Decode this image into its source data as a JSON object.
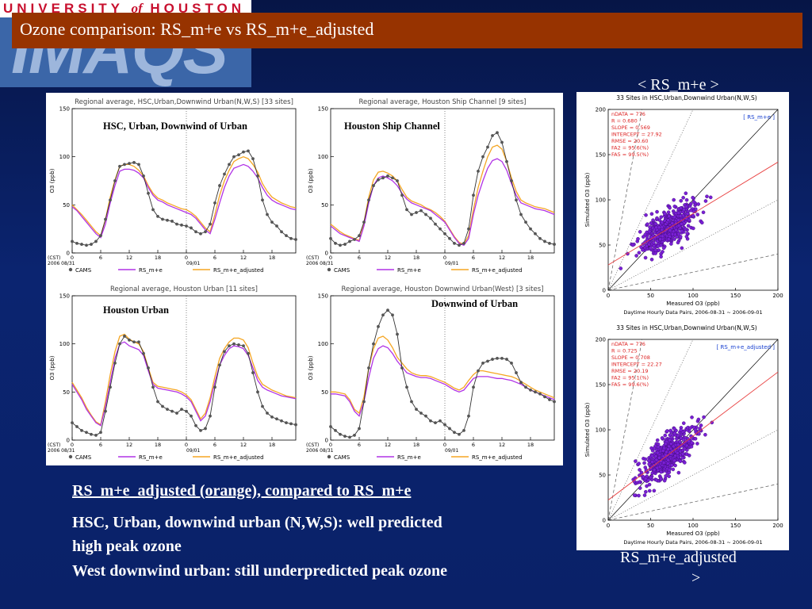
{
  "slide": {
    "title": "Ozone comparison: RS_m+e vs RS_m+e_adjusted",
    "logo_text": "UNIVERSITY of HOUSTON",
    "logo_mark": "IMAQS",
    "label_top_right": "< RS_m+e >",
    "label_bottom_right_line1": "RS_m+e_adjusted",
    "label_bottom_right_line2": ">",
    "notes": [
      "RS_m+e_adjusted (orange), compared to RS_m+e",
      "HSC, Urban, downwind urban (N,W,S): well predicted",
      "high peak ozone",
      "West downwind urban: still underpredicted peak ozone"
    ]
  },
  "colors": {
    "title_bar": "#973300",
    "background": "#0b2470",
    "cams": "#333333",
    "rsme": "#b133e6",
    "rsme_adjusted": "#f5a623",
    "scatter_points": "#7a1fd6",
    "fit_line": "#e84040"
  },
  "chart_data": [
    {
      "type": "line",
      "title": "Regional average, HSC,Urban,Downwind Urban(N,W,S) [33 sites]",
      "annotation": "HSC, Urban, Downwind of Urban",
      "ylabel": "O3 (ppb)",
      "ylim": [
        0,
        150
      ],
      "yticks": [
        "0",
        "50",
        "100",
        "150"
      ],
      "xtick_labels": [
        "0",
        "6",
        "12",
        "18",
        "0",
        "6",
        "12",
        "18"
      ],
      "date_labels": [
        "(CST)",
        "2006 08/31",
        "09/01"
      ],
      "x": [
        0,
        1,
        2,
        3,
        4,
        5,
        6,
        7,
        8,
        9,
        10,
        11,
        12,
        13,
        14,
        15,
        16,
        17,
        18,
        19,
        20,
        21,
        22,
        23,
        24,
        25,
        26,
        27,
        28,
        29,
        30,
        31,
        32,
        33,
        34,
        35,
        36,
        37,
        38,
        39,
        40,
        41,
        42,
        43,
        44,
        45,
        46,
        47
      ],
      "series": [
        {
          "name": "CAMS",
          "values": [
            12,
            10,
            9,
            8,
            9,
            12,
            18,
            35,
            55,
            75,
            90,
            92,
            93,
            94,
            92,
            80,
            62,
            45,
            38,
            35,
            34,
            33,
            30,
            29,
            28,
            26,
            22,
            20,
            22,
            30,
            52,
            70,
            82,
            92,
            100,
            102,
            105,
            106,
            98,
            80,
            55,
            40,
            32,
            28,
            22,
            18,
            15,
            14
          ]
        },
        {
          "name": "RS_m+e",
          "values": [
            48,
            44,
            38,
            32,
            26,
            20,
            16,
            30,
            52,
            70,
            85,
            87,
            87,
            86,
            83,
            78,
            68,
            60,
            55,
            53,
            50,
            48,
            46,
            44,
            42,
            40,
            36,
            30,
            24,
            20,
            35,
            52,
            68,
            80,
            88,
            90,
            92,
            90,
            85,
            78,
            68,
            60,
            55,
            52,
            50,
            48,
            46,
            45
          ]
        },
        {
          "name": "RS_m+e_adjusted",
          "values": [
            50,
            45,
            40,
            34,
            28,
            22,
            18,
            35,
            58,
            76,
            90,
            92,
            92,
            90,
            86,
            80,
            70,
            62,
            57,
            55,
            52,
            50,
            48,
            46,
            45,
            42,
            38,
            32,
            26,
            22,
            40,
            60,
            75,
            86,
            95,
            98,
            100,
            98,
            92,
            84,
            72,
            64,
            58,
            55,
            52,
            50,
            48,
            47
          ]
        }
      ]
    },
    {
      "type": "line",
      "title": "Regional average, Houston Ship Channel [9 sites]",
      "annotation": "Houston Ship Channel",
      "ylabel": "O3 (ppb)",
      "ylim": [
        0,
        150
      ],
      "yticks": [
        "0",
        "50",
        "100",
        "150"
      ],
      "xtick_labels": [
        "0",
        "6",
        "12",
        "18",
        "0",
        "6",
        "12",
        "18"
      ],
      "date_labels": [
        "(CST)",
        "2006 08/31",
        "09/01"
      ],
      "x": [
        0,
        1,
        2,
        3,
        4,
        5,
        6,
        7,
        8,
        9,
        10,
        11,
        12,
        13,
        14,
        15,
        16,
        17,
        18,
        19,
        20,
        21,
        22,
        23,
        24,
        25,
        26,
        27,
        28,
        29,
        30,
        31,
        32,
        33,
        34,
        35,
        36,
        37,
        38,
        39,
        40,
        41,
        42,
        43,
        44,
        45,
        46,
        47
      ],
      "series": [
        {
          "name": "CAMS",
          "values": [
            15,
            10,
            8,
            9,
            12,
            14,
            18,
            32,
            55,
            70,
            76,
            78,
            80,
            78,
            75,
            60,
            45,
            40,
            42,
            44,
            40,
            36,
            30,
            25,
            20,
            15,
            10,
            8,
            10,
            25,
            60,
            85,
            100,
            110,
            122,
            125,
            115,
            95,
            75,
            55,
            40,
            32,
            25,
            20,
            15,
            12,
            10,
            9
          ]
        },
        {
          "name": "RS_m+e",
          "values": [
            28,
            24,
            20,
            18,
            16,
            14,
            12,
            28,
            52,
            70,
            78,
            80,
            78,
            75,
            70,
            62,
            56,
            52,
            50,
            48,
            46,
            44,
            40,
            36,
            32,
            24,
            16,
            10,
            8,
            15,
            40,
            60,
            75,
            88,
            96,
            98,
            95,
            86,
            72,
            60,
            52,
            50,
            48,
            46,
            45,
            44,
            42,
            40
          ]
        },
        {
          "name": "RS_m+e_adjusted",
          "values": [
            30,
            26,
            22,
            19,
            17,
            15,
            13,
            32,
            58,
            76,
            84,
            85,
            83,
            80,
            75,
            66,
            58,
            54,
            52,
            50,
            47,
            45,
            42,
            38,
            33,
            25,
            17,
            11,
            9,
            18,
            45,
            68,
            85,
            100,
            110,
            112,
            108,
            95,
            78,
            64,
            55,
            52,
            50,
            48,
            47,
            46,
            44,
            42
          ]
        }
      ]
    },
    {
      "type": "line",
      "title": "Regional average, Houston Urban [11 sites]",
      "annotation": "Houston Urban",
      "ylabel": "O3 (ppb)",
      "ylim": [
        0,
        150
      ],
      "yticks": [
        "0",
        "50",
        "100",
        "150"
      ],
      "xtick_labels": [
        "0",
        "6",
        "12",
        "18",
        "0",
        "6",
        "12",
        "18"
      ],
      "date_labels": [
        "(CST)",
        "2006 08/31",
        "09/01"
      ],
      "x": [
        0,
        1,
        2,
        3,
        4,
        5,
        6,
        7,
        8,
        9,
        10,
        11,
        12,
        13,
        14,
        15,
        16,
        17,
        18,
        19,
        20,
        21,
        22,
        23,
        24,
        25,
        26,
        27,
        28,
        29,
        30,
        31,
        32,
        33,
        34,
        35,
        36,
        37,
        38,
        39,
        40,
        41,
        42,
        43,
        44,
        45,
        46,
        47
      ],
      "series": [
        {
          "name": "CAMS",
          "values": [
            18,
            14,
            10,
            8,
            6,
            5,
            8,
            30,
            55,
            80,
            100,
            108,
            104,
            102,
            102,
            90,
            75,
            55,
            40,
            35,
            32,
            30,
            28,
            32,
            30,
            25,
            15,
            10,
            12,
            25,
            55,
            78,
            92,
            98,
            100,
            99,
            98,
            90,
            70,
            50,
            35,
            28,
            24,
            22,
            20,
            18,
            17,
            16
          ]
        },
        {
          "name": "RS_m+e",
          "values": [
            58,
            50,
            42,
            32,
            25,
            18,
            15,
            35,
            60,
            85,
            100,
            102,
            98,
            96,
            94,
            88,
            72,
            58,
            54,
            53,
            52,
            51,
            50,
            48,
            45,
            40,
            30,
            20,
            25,
            40,
            60,
            78,
            88,
            95,
            98,
            97,
            95,
            88,
            75,
            62,
            55,
            52,
            50,
            48,
            46,
            45,
            44,
            43
          ]
        },
        {
          "name": "RS_m+e_adjusted",
          "values": [
            60,
            52,
            44,
            34,
            26,
            19,
            16,
            40,
            68,
            92,
            108,
            110,
            105,
            102,
            100,
            92,
            75,
            60,
            56,
            55,
            54,
            53,
            52,
            50,
            47,
            42,
            32,
            22,
            28,
            44,
            66,
            85,
            95,
            102,
            106,
            106,
            104,
            96,
            80,
            66,
            58,
            55,
            52,
            50,
            48,
            46,
            45,
            44
          ]
        }
      ]
    },
    {
      "type": "line",
      "title": "Regional average, Houston Downwind Urban(West) [3 sites]",
      "annotation": "Downwind of Urban",
      "ylabel": "O3 (ppb)",
      "ylim": [
        0,
        150
      ],
      "yticks": [
        "0",
        "50",
        "100",
        "150"
      ],
      "xtick_labels": [
        "0",
        "6",
        "12",
        "18",
        "0",
        "6",
        "12",
        "18"
      ],
      "date_labels": [
        "(CST)",
        "2006 08/31",
        "09/01"
      ],
      "x": [
        0,
        1,
        2,
        3,
        4,
        5,
        6,
        7,
        8,
        9,
        10,
        11,
        12,
        13,
        14,
        15,
        16,
        17,
        18,
        19,
        20,
        21,
        22,
        23,
        24,
        25,
        26,
        27,
        28,
        29,
        30,
        31,
        32,
        33,
        34,
        35,
        36,
        37,
        38,
        39,
        40,
        41,
        42,
        43,
        44,
        45,
        46,
        47
      ],
      "series": [
        {
          "name": "CAMS",
          "values": [
            14,
            10,
            6,
            4,
            3,
            5,
            12,
            40,
            75,
            100,
            118,
            130,
            135,
            130,
            110,
            75,
            55,
            40,
            32,
            28,
            25,
            20,
            18,
            20,
            16,
            12,
            8,
            6,
            10,
            25,
            55,
            72,
            80,
            82,
            84,
            85,
            85,
            84,
            80,
            70,
            60,
            55,
            52,
            50,
            48,
            45,
            42,
            40
          ]
        },
        {
          "name": "RS_m+e",
          "values": [
            48,
            48,
            47,
            46,
            40,
            30,
            25,
            40,
            65,
            85,
            95,
            98,
            96,
            90,
            82,
            76,
            70,
            68,
            66,
            65,
            65,
            64,
            62,
            60,
            58,
            55,
            52,
            50,
            52,
            58,
            64,
            66,
            66,
            66,
            65,
            64,
            64,
            63,
            62,
            60,
            58,
            55,
            52,
            50,
            48,
            46,
            44,
            42
          ]
        },
        {
          "name": "RS_m+e_adjusted",
          "values": [
            50,
            50,
            49,
            48,
            42,
            32,
            28,
            45,
            75,
            95,
            106,
            108,
            104,
            96,
            86,
            80,
            74,
            70,
            68,
            67,
            67,
            66,
            64,
            62,
            60,
            57,
            54,
            52,
            55,
            62,
            68,
            72,
            72,
            71,
            70,
            69,
            68,
            67,
            66,
            64,
            61,
            58,
            55,
            52,
            50,
            48,
            46,
            44
          ]
        }
      ]
    },
    {
      "type": "scatter",
      "title": "33 Sites in HSC,Urban,Downwind Urban(N,W,S)",
      "legend": "[ RS_m+e ]",
      "xlabel": "Measured O3 (ppb)",
      "ylabel": "Simulated O3 (ppb)",
      "footer": "Daytime Hourly Data Pairs, 2006-08-31 ~ 2006-09-01",
      "xlim": [
        0,
        200
      ],
      "ylim": [
        0,
        200
      ],
      "ticks": [
        "0",
        "50",
        "100",
        "150",
        "200"
      ],
      "stats": [
        "nDATA = 776",
        "R = 0.680",
        "SLOPE = 0.569",
        "INTERCEPT = 27.92",
        "RMSE = 20.60",
        "FA2 = 95.6(%)",
        "FA5 = 99.5(%)"
      ],
      "slope": 0.569,
      "intercept": 27.92,
      "n_points": 776
    },
    {
      "type": "scatter",
      "title": "33 Sites in HSC,Urban,Downwind Urban(N,W,S)",
      "legend": "[ RS_m+e_adjusted ]",
      "xlabel": "Measured O3 (ppb)",
      "ylabel": "Simulated O3 (ppb)",
      "footer": "Daytime Hourly Data Pairs, 2006-08-31 ~ 2006-09-01",
      "xlim": [
        0,
        200
      ],
      "ylim": [
        0,
        200
      ],
      "ticks": [
        "0",
        "50",
        "100",
        "150",
        "200"
      ],
      "stats": [
        "nDATA = 776",
        "R = 0.725",
        "SLOPE = 0.708",
        "INTERCEPT = 22.27",
        "RMSE = 20.19",
        "FA2 = 95.1(%)",
        "FA5 = 99.6(%)"
      ],
      "slope": 0.708,
      "intercept": 22.27,
      "n_points": 776
    }
  ]
}
